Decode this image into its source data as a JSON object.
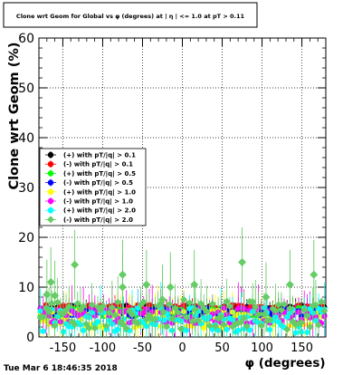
{
  "chart_data": {
    "type": "scatter",
    "title": "Clone wrt Geom for Global vs φ (degrees) at | η | <= 1.0 at pT > 0.11",
    "xlabel": "φ (degrees)",
    "ylabel": "Clone wrt  Geom (%)",
    "xlim": [
      -180,
      180
    ],
    "ylim": [
      0,
      60
    ],
    "xticks": [
      -150,
      -100,
      -50,
      0,
      50,
      100,
      150
    ],
    "yticks": [
      0,
      10,
      20,
      30,
      40,
      50,
      60
    ],
    "grid": true,
    "legend_placement": "left-center",
    "timestamp": "Tue Mar  6 18:46:35 2018",
    "series": [
      {
        "name": "(+) with pT/|q| > 0.1",
        "color": "#000000",
        "marker": "circle",
        "base": 5.8,
        "spread": 0.6
      },
      {
        "name": "(-) with pT/|q| > 0.1",
        "color": "#ff0000",
        "marker": "circle",
        "base": 5.9,
        "spread": 0.6
      },
      {
        "name": "(+) with pT/|q| > 0.5",
        "color": "#00ff00",
        "marker": "circle",
        "base": 5.0,
        "spread": 0.9
      },
      {
        "name": "(-) with pT/|q| > 0.5",
        "color": "#0000ff",
        "marker": "circle",
        "base": 5.0,
        "spread": 0.9
      },
      {
        "name": "(+) with pT/|q| > 1.0",
        "color": "#ffff00",
        "marker": "circle",
        "base": 3.6,
        "spread": 1.8
      },
      {
        "name": "(-) with pT/|q| > 1.0",
        "color": "#ff00ff",
        "marker": "circle",
        "base": 4.3,
        "spread": 1.6
      },
      {
        "name": "(+) with pT/|q| > 2.0",
        "color": "#00ffff",
        "marker": "circle",
        "base": 3.3,
        "spread": 2.6
      },
      {
        "name": "(-) with pT/|q| > 2.0",
        "color": "#66cc66",
        "marker": "diamond",
        "base": 4.5,
        "spread": 3.0
      }
    ],
    "highlights": [
      {
        "x": -165,
        "y": 11.0
      },
      {
        "x": -135,
        "y": 14.5
      },
      {
        "x": -75,
        "y": 12.5
      },
      {
        "x": -75,
        "y": 10.0
      },
      {
        "x": -45,
        "y": 10.5
      },
      {
        "x": -15,
        "y": 10.0
      },
      {
        "x": 15,
        "y": 10.5
      },
      {
        "x": 75,
        "y": 15.0
      },
      {
        "x": 135,
        "y": 10.5
      },
      {
        "x": 165,
        "y": 12.5
      },
      {
        "x": 105,
        "y": 8.0
      },
      {
        "x": -160,
        "y": 8.3
      },
      {
        "x": -170,
        "y": 8.5
      },
      {
        "x": -25,
        "y": 7.5
      }
    ]
  }
}
